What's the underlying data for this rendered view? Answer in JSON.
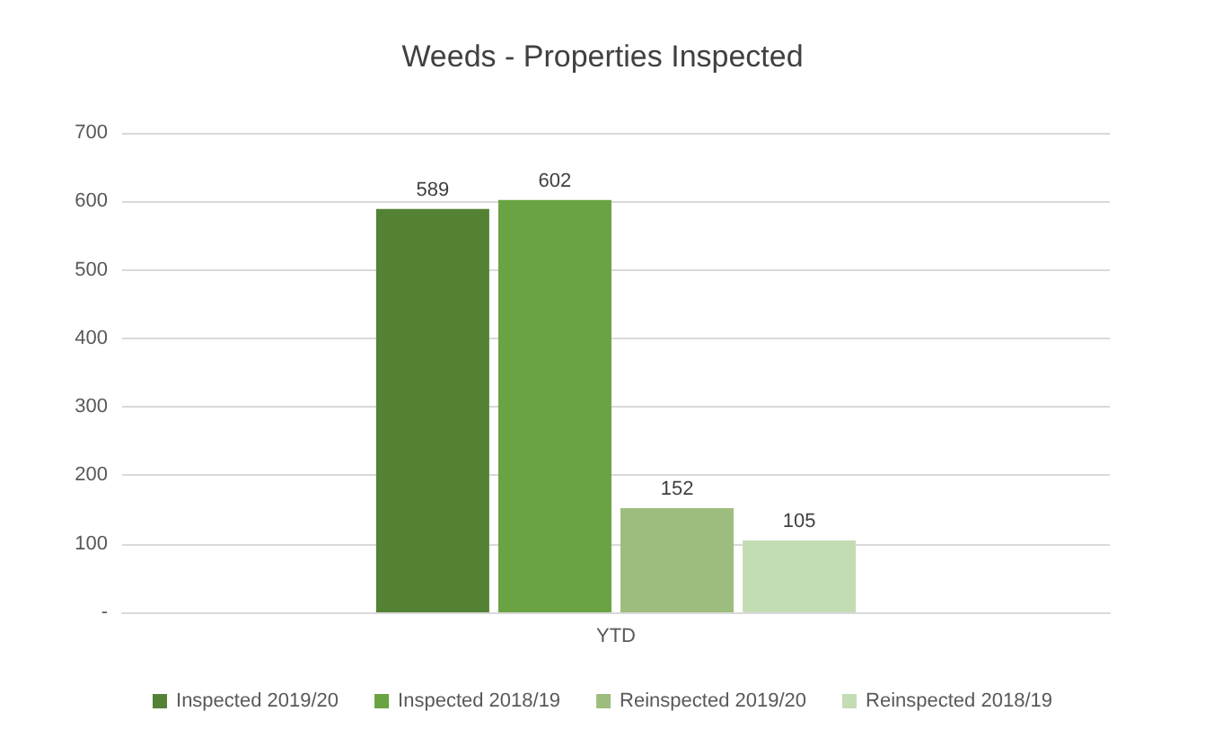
{
  "chart_data": {
    "type": "bar",
    "title": "Weeds - Properties Inspected",
    "categories": [
      "YTD"
    ],
    "series": [
      {
        "name": "Inspected 2019/20",
        "color": "#548235",
        "values": [
          589
        ]
      },
      {
        "name": "Inspected 2018/19",
        "color": "#6aa341",
        "values": [
          602
        ]
      },
      {
        "name": "Reinspected 2019/20",
        "color": "#9cbd7e",
        "values": [
          152
        ]
      },
      {
        "name": "Reinspected 2018/19",
        "color": "#c4dcb4",
        "values": [
          105
        ]
      }
    ],
    "ylim": [
      0,
      700
    ],
    "yticks": [
      {
        "value": 0,
        "label": "-"
      },
      100,
      200,
      300,
      400,
      500,
      600,
      700
    ],
    "grid": "y",
    "legend": "bottom",
    "data_labels": true
  }
}
